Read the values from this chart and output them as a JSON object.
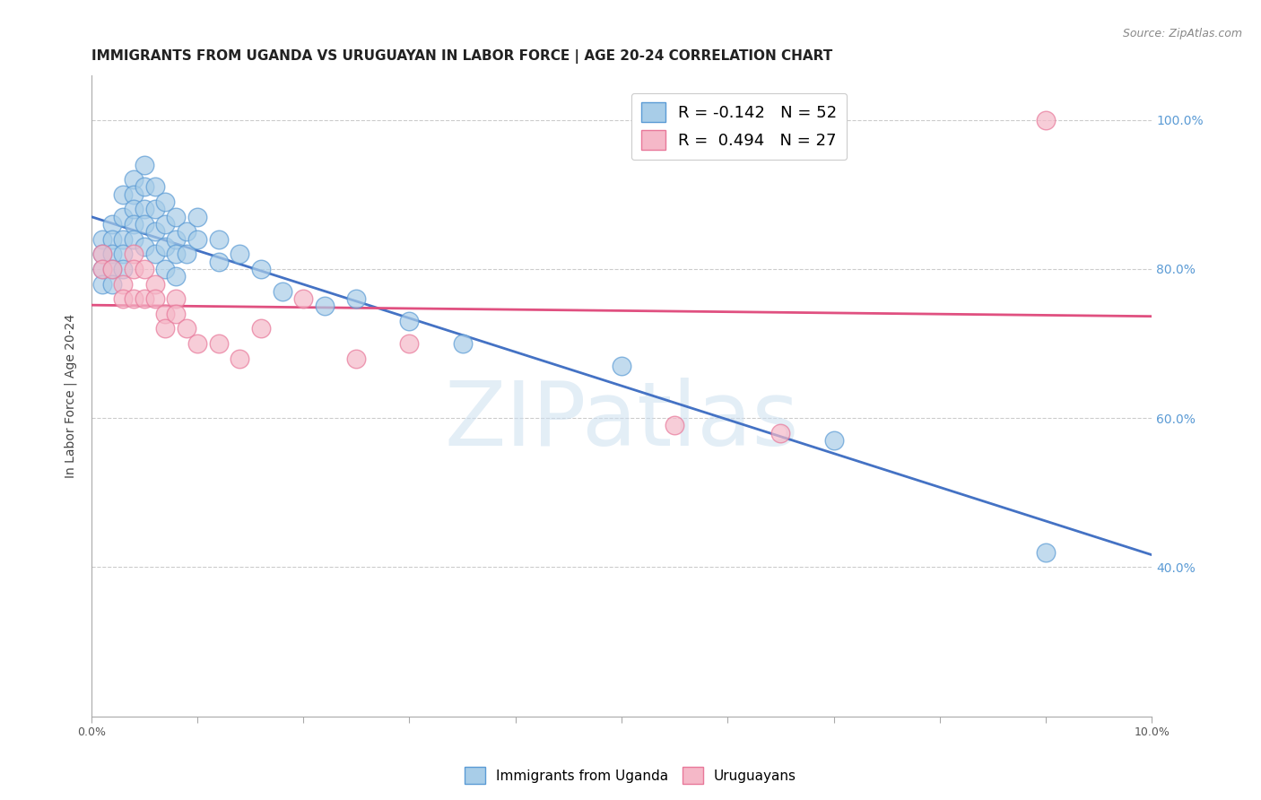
{
  "title": "IMMIGRANTS FROM UGANDA VS URUGUAYAN IN LABOR FORCE | AGE 20-24 CORRELATION CHART",
  "source": "Source: ZipAtlas.com",
  "ylabel": "In Labor Force | Age 20-24",
  "xlim": [
    0.0,
    0.1
  ],
  "ylim": [
    0.2,
    1.06
  ],
  "yticks": [
    0.4,
    0.6,
    0.8,
    1.0
  ],
  "ytick_labels": [
    "40.0%",
    "60.0%",
    "80.0%",
    "100.0%"
  ],
  "xticks": [
    0.0,
    0.01,
    0.02,
    0.03,
    0.04,
    0.05,
    0.06,
    0.07,
    0.08,
    0.09,
    0.1
  ],
  "xtick_labels": [
    "0.0%",
    "",
    "",
    "",
    "",
    "",
    "",
    "",
    "",
    "",
    "10.0%"
  ],
  "watermark_text": "ZIPatlas",
  "blue_r": -0.142,
  "blue_n": 52,
  "pink_r": 0.494,
  "pink_n": 27,
  "blue_fill": "#a8cde8",
  "pink_fill": "#f5b8c8",
  "blue_edge": "#5b9bd5",
  "pink_edge": "#e8789a",
  "blue_line": "#4472c4",
  "pink_line": "#e05080",
  "blue_scatter": [
    [
      0.001,
      0.84
    ],
    [
      0.001,
      0.82
    ],
    [
      0.001,
      0.8
    ],
    [
      0.001,
      0.78
    ],
    [
      0.002,
      0.86
    ],
    [
      0.002,
      0.84
    ],
    [
      0.002,
      0.82
    ],
    [
      0.002,
      0.8
    ],
    [
      0.002,
      0.78
    ],
    [
      0.003,
      0.9
    ],
    [
      0.003,
      0.87
    ],
    [
      0.003,
      0.84
    ],
    [
      0.003,
      0.82
    ],
    [
      0.003,
      0.8
    ],
    [
      0.004,
      0.92
    ],
    [
      0.004,
      0.9
    ],
    [
      0.004,
      0.88
    ],
    [
      0.004,
      0.86
    ],
    [
      0.004,
      0.84
    ],
    [
      0.005,
      0.94
    ],
    [
      0.005,
      0.91
    ],
    [
      0.005,
      0.88
    ],
    [
      0.005,
      0.86
    ],
    [
      0.005,
      0.83
    ],
    [
      0.006,
      0.91
    ],
    [
      0.006,
      0.88
    ],
    [
      0.006,
      0.85
    ],
    [
      0.006,
      0.82
    ],
    [
      0.007,
      0.89
    ],
    [
      0.007,
      0.86
    ],
    [
      0.007,
      0.83
    ],
    [
      0.007,
      0.8
    ],
    [
      0.008,
      0.87
    ],
    [
      0.008,
      0.84
    ],
    [
      0.008,
      0.82
    ],
    [
      0.008,
      0.79
    ],
    [
      0.009,
      0.85
    ],
    [
      0.009,
      0.82
    ],
    [
      0.01,
      0.87
    ],
    [
      0.01,
      0.84
    ],
    [
      0.012,
      0.84
    ],
    [
      0.012,
      0.81
    ],
    [
      0.014,
      0.82
    ],
    [
      0.016,
      0.8
    ],
    [
      0.018,
      0.77
    ],
    [
      0.022,
      0.75
    ],
    [
      0.025,
      0.76
    ],
    [
      0.03,
      0.73
    ],
    [
      0.035,
      0.7
    ],
    [
      0.05,
      0.67
    ],
    [
      0.07,
      0.57
    ],
    [
      0.09,
      0.42
    ]
  ],
  "pink_scatter": [
    [
      0.001,
      0.82
    ],
    [
      0.001,
      0.8
    ],
    [
      0.002,
      0.8
    ],
    [
      0.003,
      0.78
    ],
    [
      0.003,
      0.76
    ],
    [
      0.004,
      0.82
    ],
    [
      0.004,
      0.8
    ],
    [
      0.004,
      0.76
    ],
    [
      0.005,
      0.8
    ],
    [
      0.005,
      0.76
    ],
    [
      0.006,
      0.78
    ],
    [
      0.006,
      0.76
    ],
    [
      0.007,
      0.74
    ],
    [
      0.007,
      0.72
    ],
    [
      0.008,
      0.76
    ],
    [
      0.008,
      0.74
    ],
    [
      0.009,
      0.72
    ],
    [
      0.01,
      0.7
    ],
    [
      0.012,
      0.7
    ],
    [
      0.014,
      0.68
    ],
    [
      0.016,
      0.72
    ],
    [
      0.02,
      0.76
    ],
    [
      0.025,
      0.68
    ],
    [
      0.03,
      0.7
    ],
    [
      0.055,
      0.59
    ],
    [
      0.065,
      0.58
    ],
    [
      0.09,
      1.0
    ]
  ],
  "title_fontsize": 11,
  "axis_label_fontsize": 10,
  "tick_fontsize": 9,
  "legend_fontsize": 13,
  "source_fontsize": 9
}
